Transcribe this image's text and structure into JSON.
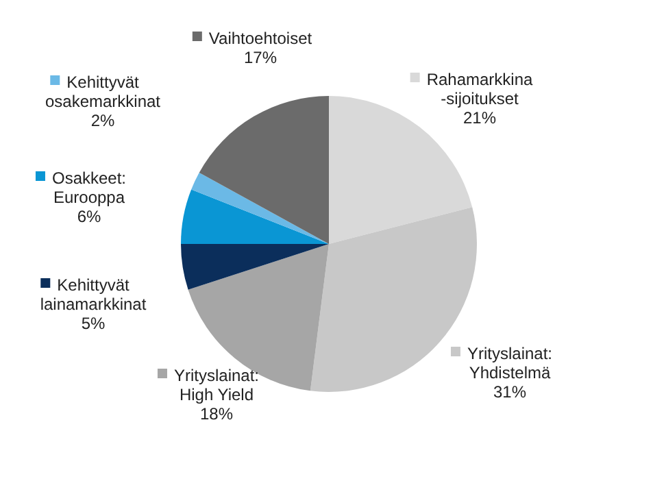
{
  "chart_data": {
    "type": "pie",
    "categories": [
      "Rahamarkkina\n-sijoitukset",
      "Yrityslainat:\nYhdistelmä",
      "Yrityslainat:\nHigh Yield",
      "Kehittyvät\nlainamarkkinat",
      "Osakkeet:\nEurooppa",
      "Kehittyvät\nosakemarkkinat",
      "Vaihtoehtoiset"
    ],
    "values": [
      21,
      31,
      18,
      5,
      6,
      2,
      17
    ],
    "colors": [
      "#d9d9d9",
      "#c8c8c8",
      "#a6a6a6",
      "#0b2e5b",
      "#0a96d4",
      "#6bb9e6",
      "#6b6b6b"
    ],
    "value_labels": [
      "21%",
      "31%",
      "18%",
      "5%",
      "6%",
      "2%",
      "17%"
    ],
    "legend": "left"
  }
}
